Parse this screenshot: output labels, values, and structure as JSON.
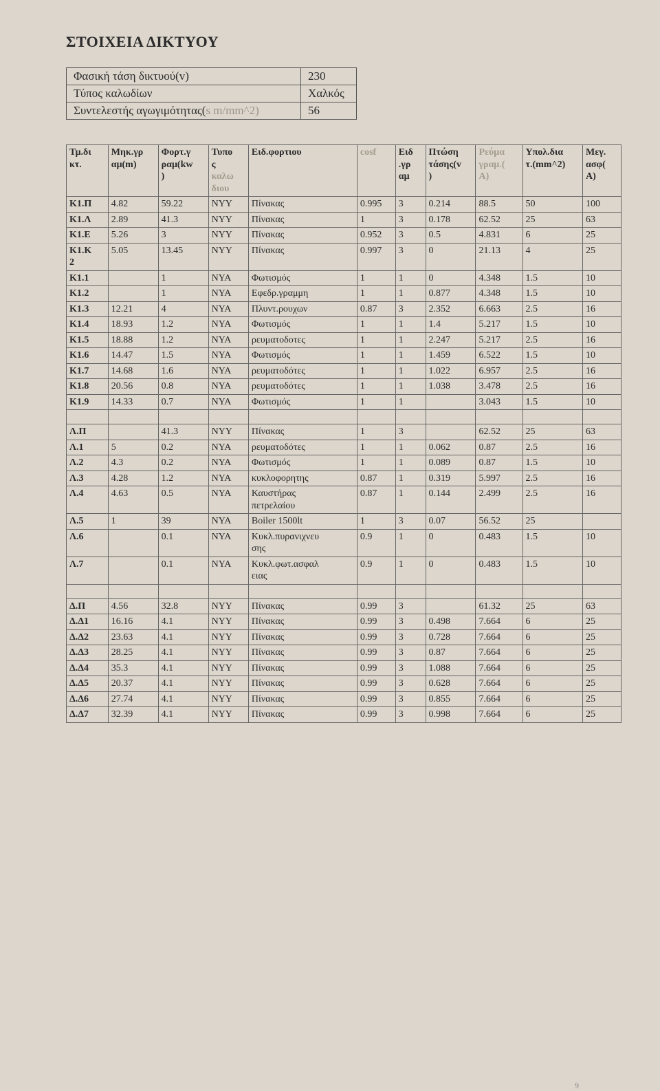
{
  "title": "ΣΤΟΙΧΕΙΑ ΔΙΚΤΥΟΥ",
  "params": {
    "rows": [
      {
        "label": "Φασική τάση δικτυού(v)",
        "value": "230"
      },
      {
        "label": "Τύπος καλωδίων",
        "value": "Χαλκός"
      },
      {
        "label": "Συντελεστής αγωγιμότητας(s m/mm^2)",
        "value": "56"
      }
    ]
  },
  "main": {
    "headers": [
      "Τμ.δι\nκτ.",
      "Μηκ.γρ\nαμ(m)",
      "Φορτ.γ\nραμ(kw\n)",
      "Τυπο\nς\nκαλω\nδιου",
      "Ειδ.φορτιου",
      "cosf",
      "Ειδ\n.γρ\nαμ",
      "Πτώση\nτάσης(v\n)",
      "Ρεύμα\nγραμ.(\nA)",
      "Υπολ.δια\nτ.(mm^2)",
      "Μεγ.\nασφ(\nA)"
    ],
    "sections": [
      {
        "rows": [
          [
            "K1.Π",
            "4.82",
            "59.22",
            "NYY",
            "Πίνακας",
            "0.995",
            "3",
            "0.214",
            "88.5",
            "50",
            "100"
          ],
          [
            "K1.Λ",
            "2.89",
            "41.3",
            "NYY",
            "Πίνακας",
            "1",
            "3",
            "0.178",
            "62.52",
            "25",
            "63"
          ],
          [
            "K1.E",
            "5.26",
            "3",
            "NYY",
            "Πίνακας",
            "0.952",
            "3",
            "0.5",
            "4.831",
            "6",
            "25"
          ],
          [
            "K1.K\n2",
            "5.05",
            "13.45",
            "NYY",
            "Πίνακας",
            "0.997",
            "3",
            "0",
            "21.13",
            "4",
            "25"
          ],
          [
            "K1.1",
            "",
            "1",
            "NYA",
            "Φωτισμός",
            "1",
            "1",
            "0",
            "4.348",
            "1.5",
            "10"
          ],
          [
            "K1.2",
            "",
            "1",
            "NYA",
            "Εφεδρ.γραμμη",
            "1",
            "1",
            "0.877",
            "4.348",
            "1.5",
            "10"
          ],
          [
            "K1.3",
            "12.21",
            "4",
            "NYA",
            "Πλυντ.ρουχων",
            "0.87",
            "3",
            "2.352",
            "6.663",
            "2.5",
            "16"
          ],
          [
            "K1.4",
            "18.93",
            "1.2",
            "NYA",
            "Φωτισμός",
            "1",
            "1",
            "1.4",
            "5.217",
            "1.5",
            "10"
          ],
          [
            "K1.5",
            "18.88",
            "1.2",
            "NYA",
            "ρευματοδοτες",
            "1",
            "1",
            "2.247",
            "5.217",
            "2.5",
            "16"
          ],
          [
            "K1.6",
            "14.47",
            "1.5",
            "NYA",
            "Φωτισμός",
            "1",
            "1",
            "1.459",
            "6.522",
            "1.5",
            "10"
          ],
          [
            "K1.7",
            "14.68",
            "1.6",
            "NYA",
            "ρευματοδότες",
            "1",
            "1",
            "1.022",
            "6.957",
            "2.5",
            "16"
          ],
          [
            "K1.8",
            "20.56",
            "0.8",
            "NYA",
            "ρευματοδότες",
            "1",
            "1",
            "1.038",
            "3.478",
            "2.5",
            "16"
          ],
          [
            "K1.9",
            "14.33",
            "0.7",
            "NYA",
            "Φωτισμός",
            "1",
            "1",
            "",
            "3.043",
            "1.5",
            "10"
          ]
        ]
      },
      {
        "rows": [
          [
            "Λ.Π",
            "",
            "41.3",
            "NYY",
            "Πίνακας",
            "1",
            "3",
            "",
            "62.52",
            "25",
            "63"
          ],
          [
            "Λ.1",
            "5",
            "0.2",
            "NYA",
            "ρευματοδότες",
            "1",
            "1",
            "0.062",
            "0.87",
            "2.5",
            "16"
          ],
          [
            "Λ.2",
            "4.3",
            "0.2",
            "NYA",
            "Φωτισμός",
            "1",
            "1",
            "0.089",
            "0.87",
            "1.5",
            "10"
          ],
          [
            "Λ.3",
            "4.28",
            "1.2",
            "NYA",
            "κυκλοφορητης",
            "0.87",
            "1",
            "0.319",
            "5.997",
            "2.5",
            "16"
          ],
          [
            "Λ.4",
            "4.63",
            "0.5",
            "NYA",
            "Καυστήρας\nπετρελαίου",
            "0.87",
            "1",
            "0.144",
            "2.499",
            "2.5",
            "16"
          ],
          [
            "Λ.5",
            "1",
            "39",
            "NYA",
            "Boiler 1500lt",
            "1",
            "3",
            "0.07",
            "56.52",
            "25",
            ""
          ],
          [
            "Λ.6",
            "",
            "0.1",
            "NYA",
            "Κυκλ.πυρανιχνευ\nσης",
            "0.9",
            "1",
            "0",
            "0.483",
            "1.5",
            "10"
          ],
          [
            "Λ.7",
            "",
            "0.1",
            "NYA",
            "Κυκλ.φωτ.ασφαλ\nειας",
            "0.9",
            "1",
            "0",
            "0.483",
            "1.5",
            "10"
          ]
        ]
      },
      {
        "rows": [
          [
            "Δ.Π",
            "4.56",
            "32.8",
            "NYY",
            "Πίνακας",
            "0.99",
            "3",
            "",
            "61.32",
            "25",
            "63"
          ],
          [
            "Δ.Δ1",
            "16.16",
            "4.1",
            "NYY",
            "Πίνακας",
            "0.99",
            "3",
            "0.498",
            "7.664",
            "6",
            "25"
          ],
          [
            "Δ.Δ2",
            "23.63",
            "4.1",
            "NYY",
            "Πίνακας",
            "0.99",
            "3",
            "0.728",
            "7.664",
            "6",
            "25"
          ],
          [
            "Δ.Δ3",
            "28.25",
            "4.1",
            "NYY",
            "Πίνακας",
            "0.99",
            "3",
            "0.87",
            "7.664",
            "6",
            "25"
          ],
          [
            "Δ.Δ4",
            "35.3",
            "4.1",
            "NYY",
            "Πίνακας",
            "0.99",
            "3",
            "1.088",
            "7.664",
            "6",
            "25"
          ],
          [
            "Δ.Δ5",
            "20.37",
            "4.1",
            "NYY",
            "Πίνακας",
            "0.99",
            "3",
            "0.628",
            "7.664",
            "6",
            "25"
          ],
          [
            "Δ.Δ6",
            "27.74",
            "4.1",
            "NYY",
            "Πίνακας",
            "0.99",
            "3",
            "0.855",
            "7.664",
            "6",
            "25"
          ],
          [
            "Δ.Δ7",
            "32.39",
            "4.1",
            "NYY",
            "Πίνακας",
            "0.99",
            "3",
            "0.998",
            "7.664",
            "6",
            "25"
          ]
        ]
      }
    ]
  },
  "colwidths": [
    "50",
    "60",
    "60",
    "48",
    "130",
    "46",
    "36",
    "60",
    "56",
    "72",
    "46"
  ],
  "page_number": "9"
}
